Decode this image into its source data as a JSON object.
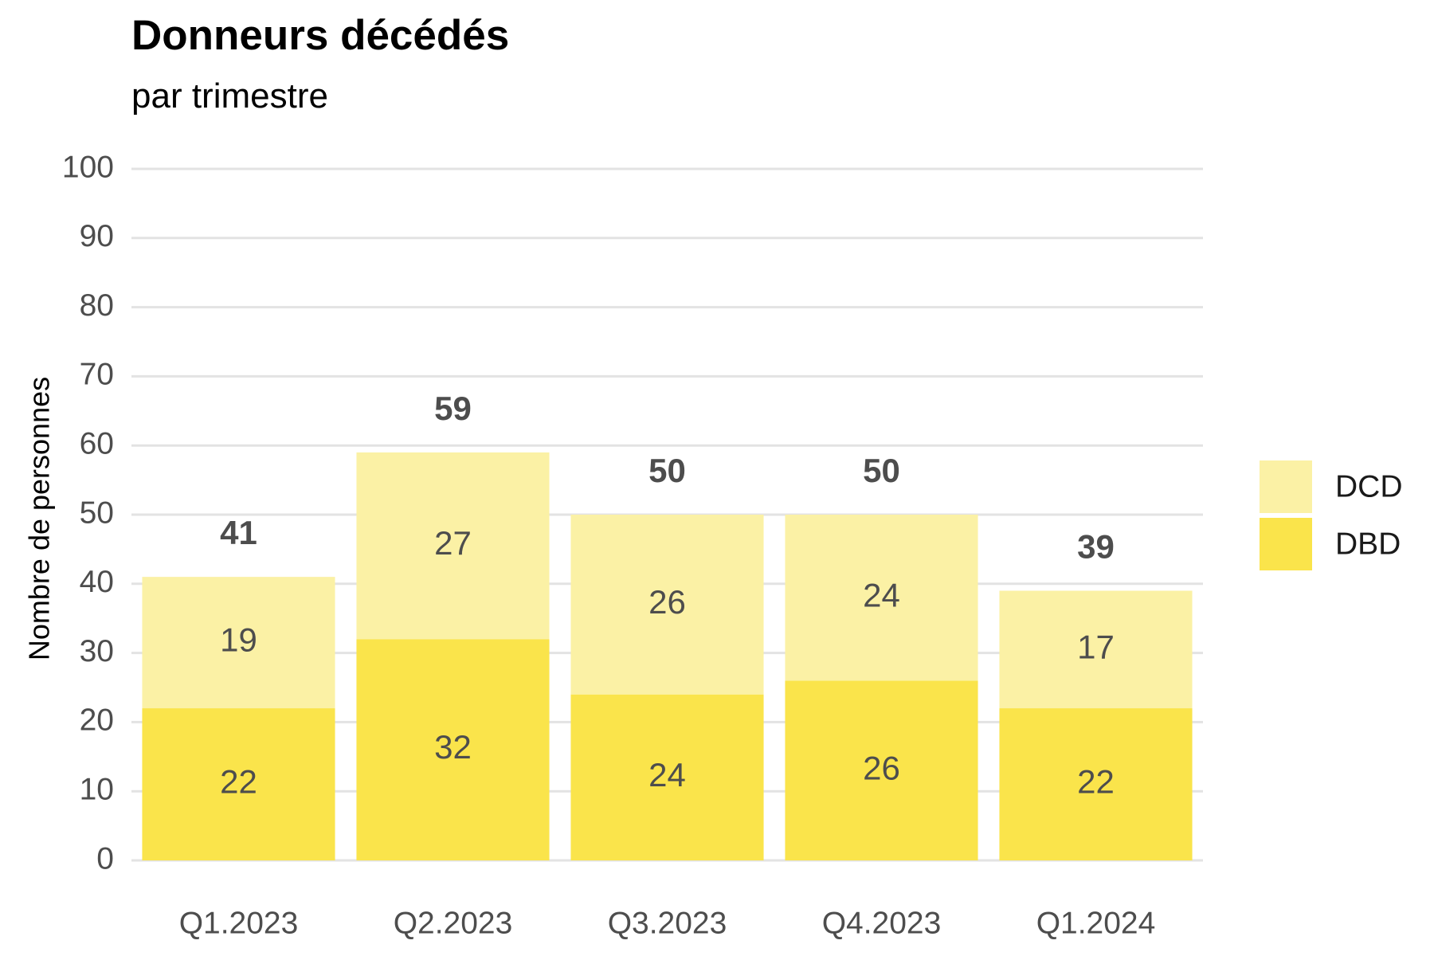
{
  "chart_data": {
    "type": "bar",
    "stacked": true,
    "title": "Donneurs décédés",
    "subtitle": "par trimestre",
    "xlabel": "",
    "ylabel": "Nombre de personnes",
    "ylim": [
      0,
      100
    ],
    "yticks": [
      0,
      10,
      20,
      30,
      40,
      50,
      60,
      70,
      80,
      90,
      100
    ],
    "grid": true,
    "legend_position": "right",
    "categories": [
      "Q1.2023",
      "Q2.2023",
      "Q3.2023",
      "Q4.2023",
      "Q1.2024"
    ],
    "series": [
      {
        "name": "DBD",
        "values": [
          22,
          32,
          24,
          26,
          22
        ],
        "color": "#fae44b"
      },
      {
        "name": "DCD",
        "values": [
          19,
          27,
          26,
          24,
          17
        ],
        "color": "#fbf1a5"
      }
    ],
    "totals": [
      41,
      59,
      50,
      50,
      39
    ],
    "legend_order": [
      "DCD",
      "DBD"
    ]
  }
}
